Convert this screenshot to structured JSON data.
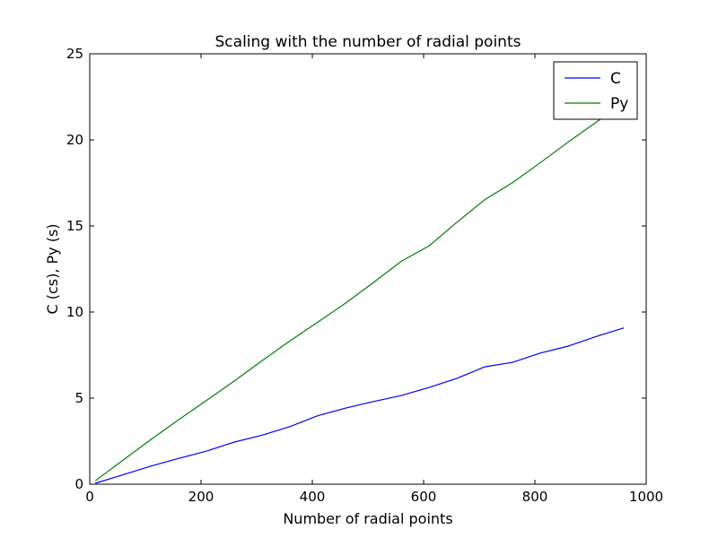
{
  "chart_data": {
    "type": "line",
    "title": "Scaling with the number of radial points",
    "xlabel": "Number of radial points",
    "ylabel": "C (cs), Py (s)",
    "xlim": [
      0,
      1000
    ],
    "ylim": [
      0,
      25
    ],
    "xticks": [
      0,
      200,
      400,
      600,
      800,
      1000
    ],
    "yticks": [
      0,
      5,
      10,
      15,
      20,
      25
    ],
    "grid": false,
    "legend_position": "top-right",
    "x": [
      10,
      60,
      110,
      160,
      210,
      260,
      310,
      360,
      410,
      460,
      510,
      560,
      610,
      660,
      710,
      760,
      810,
      860,
      910,
      960
    ],
    "series": [
      {
        "name": "C",
        "color": "#0000ff",
        "values": [
          0.05,
          0.55,
          1.05,
          1.5,
          1.92,
          2.45,
          2.85,
          3.35,
          3.98,
          4.42,
          4.8,
          5.15,
          5.62,
          6.15,
          6.82,
          7.08,
          7.62,
          8.02,
          8.58,
          9.08
        ]
      },
      {
        "name": "Py",
        "color": "#008000",
        "values": [
          0.2,
          1.4,
          2.6,
          3.75,
          4.87,
          6.0,
          7.18,
          8.33,
          9.42,
          10.52,
          11.72,
          12.95,
          13.85,
          15.22,
          16.53,
          17.52,
          18.68,
          19.88,
          21.02,
          22.18
        ]
      }
    ]
  }
}
